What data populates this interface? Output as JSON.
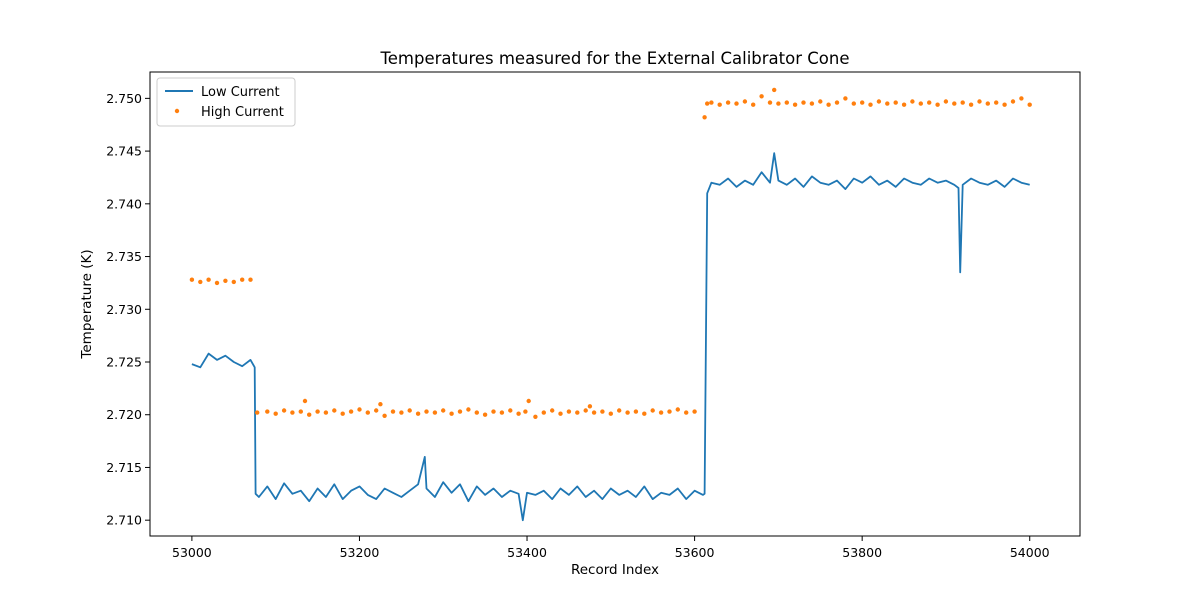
{
  "chart_data": {
    "type": "line+scatter",
    "title": "Temperatures measured for the External Calibrator Cone",
    "xlabel": "Record Index",
    "ylabel": "Temperature (K)",
    "xlim": [
      52950,
      54060
    ],
    "ylim": [
      2.7085,
      2.7525
    ],
    "xticks": [
      53000,
      53200,
      53400,
      53600,
      53800,
      54000
    ],
    "xtick_labels": [
      "53000",
      "53200",
      "53400",
      "53600",
      "53800",
      "54000"
    ],
    "yticks": [
      2.71,
      2.715,
      2.72,
      2.725,
      2.73,
      2.735,
      2.74,
      2.745,
      2.75
    ],
    "ytick_labels": [
      "2.710",
      "2.715",
      "2.720",
      "2.725",
      "2.730",
      "2.735",
      "2.740",
      "2.745",
      "2.750"
    ],
    "grid": false,
    "legend": {
      "placement": "upper-left",
      "entries": [
        {
          "label": "Low Current",
          "marker": "line",
          "color": "#1f77b4"
        },
        {
          "label": "High Current",
          "marker": "dot",
          "color": "#ff7f0e"
        }
      ]
    },
    "series": [
      {
        "name": "Low Current",
        "style": "line",
        "color": "#1f77b4",
        "x": [
          53000,
          53010,
          53020,
          53030,
          53040,
          53050,
          53060,
          53070,
          53075,
          53076,
          53080,
          53090,
          53100,
          53110,
          53120,
          53130,
          53140,
          53150,
          53160,
          53170,
          53180,
          53190,
          53200,
          53210,
          53220,
          53230,
          53240,
          53250,
          53260,
          53270,
          53278,
          53280,
          53290,
          53300,
          53310,
          53320,
          53330,
          53340,
          53350,
          53360,
          53370,
          53380,
          53390,
          53395,
          53400,
          53410,
          53420,
          53430,
          53440,
          53450,
          53460,
          53470,
          53480,
          53490,
          53500,
          53510,
          53520,
          53530,
          53540,
          53550,
          53560,
          53570,
          53580,
          53590,
          53600,
          53610,
          53612,
          53615,
          53620,
          53630,
          53640,
          53650,
          53660,
          53670,
          53680,
          53690,
          53695,
          53700,
          53710,
          53720,
          53730,
          53740,
          53750,
          53760,
          53770,
          53780,
          53790,
          53800,
          53810,
          53820,
          53830,
          53840,
          53850,
          53860,
          53870,
          53880,
          53890,
          53900,
          53910,
          53915,
          53917,
          53920,
          53930,
          53940,
          53950,
          53960,
          53970,
          53980,
          53990,
          54000
        ],
        "values": [
          2.7248,
          2.7245,
          2.7258,
          2.7252,
          2.7256,
          2.725,
          2.7246,
          2.7252,
          2.7245,
          2.7125,
          2.7122,
          2.7132,
          2.712,
          2.7135,
          2.7125,
          2.7128,
          2.7118,
          2.713,
          2.7122,
          2.7134,
          2.712,
          2.7128,
          2.7132,
          2.7124,
          2.712,
          2.713,
          2.7126,
          2.7122,
          2.7128,
          2.7134,
          2.716,
          2.713,
          2.7122,
          2.7136,
          2.7126,
          2.7134,
          2.7118,
          2.7132,
          2.7124,
          2.713,
          2.7122,
          2.7128,
          2.7125,
          2.71,
          2.7126,
          2.7124,
          2.7128,
          2.712,
          2.713,
          2.7124,
          2.7132,
          2.7122,
          2.7128,
          2.712,
          2.713,
          2.7124,
          2.7128,
          2.7122,
          2.7132,
          2.712,
          2.7126,
          2.7124,
          2.713,
          2.712,
          2.7128,
          2.7124,
          2.7125,
          2.741,
          2.742,
          2.7418,
          2.7424,
          2.7416,
          2.7422,
          2.7418,
          2.743,
          2.742,
          2.7448,
          2.7422,
          2.7418,
          2.7424,
          2.7416,
          2.7426,
          2.742,
          2.7418,
          2.7422,
          2.7414,
          2.7424,
          2.742,
          2.7426,
          2.7418,
          2.7422,
          2.7416,
          2.7424,
          2.742,
          2.7418,
          2.7424,
          2.742,
          2.7422,
          2.7418,
          2.7415,
          2.7335,
          2.7418,
          2.7424,
          2.742,
          2.7418,
          2.7422,
          2.7416,
          2.7424,
          2.742,
          2.7418
        ]
      },
      {
        "name": "High Current",
        "style": "scatter",
        "color": "#ff7f0e",
        "x": [
          53000,
          53010,
          53020,
          53030,
          53040,
          53050,
          53060,
          53070,
          53078,
          53090,
          53100,
          53110,
          53120,
          53130,
          53135,
          53140,
          53150,
          53160,
          53170,
          53180,
          53190,
          53200,
          53210,
          53220,
          53225,
          53230,
          53240,
          53250,
          53260,
          53270,
          53280,
          53290,
          53300,
          53310,
          53320,
          53330,
          53340,
          53350,
          53360,
          53370,
          53380,
          53390,
          53398,
          53402,
          53410,
          53420,
          53430,
          53440,
          53450,
          53460,
          53470,
          53475,
          53480,
          53490,
          53500,
          53510,
          53520,
          53530,
          53540,
          53550,
          53560,
          53570,
          53580,
          53590,
          53600,
          53612,
          53615,
          53620,
          53630,
          53640,
          53650,
          53660,
          53670,
          53680,
          53690,
          53695,
          53700,
          53710,
          53720,
          53730,
          53740,
          53750,
          53760,
          53770,
          53780,
          53790,
          53800,
          53810,
          53820,
          53830,
          53840,
          53850,
          53860,
          53870,
          53880,
          53890,
          53900,
          53910,
          53920,
          53930,
          53940,
          53950,
          53960,
          53970,
          53980,
          53990,
          54000
        ],
        "values": [
          2.7328,
          2.7326,
          2.7328,
          2.7325,
          2.7327,
          2.7326,
          2.7328,
          2.7328,
          2.7202,
          2.7203,
          2.7201,
          2.7204,
          2.7202,
          2.7203,
          2.7213,
          2.72,
          2.7203,
          2.7202,
          2.7204,
          2.7201,
          2.7203,
          2.7205,
          2.7202,
          2.7204,
          2.721,
          2.7199,
          2.7203,
          2.7202,
          2.7204,
          2.7201,
          2.7203,
          2.7202,
          2.7204,
          2.7201,
          2.7203,
          2.7205,
          2.7202,
          2.72,
          2.7203,
          2.7202,
          2.7204,
          2.7201,
          2.7203,
          2.7213,
          2.7198,
          2.7202,
          2.7204,
          2.7201,
          2.7203,
          2.7202,
          2.7204,
          2.7208,
          2.7202,
          2.7203,
          2.7201,
          2.7204,
          2.7202,
          2.7203,
          2.7201,
          2.7204,
          2.7202,
          2.7203,
          2.7205,
          2.7202,
          2.7203,
          2.7482,
          2.7495,
          2.7496,
          2.7494,
          2.7496,
          2.7495,
          2.7497,
          2.7494,
          2.7502,
          2.7496,
          2.7508,
          2.7495,
          2.7496,
          2.7494,
          2.7496,
          2.7495,
          2.7497,
          2.7494,
          2.7496,
          2.75,
          2.7495,
          2.7496,
          2.7494,
          2.7497,
          2.7495,
          2.7496,
          2.7494,
          2.7497,
          2.7495,
          2.7496,
          2.7494,
          2.7497,
          2.7495,
          2.7496,
          2.7494,
          2.7497,
          2.7495,
          2.7496,
          2.7494,
          2.7497,
          2.75,
          2.7494
        ]
      }
    ]
  }
}
